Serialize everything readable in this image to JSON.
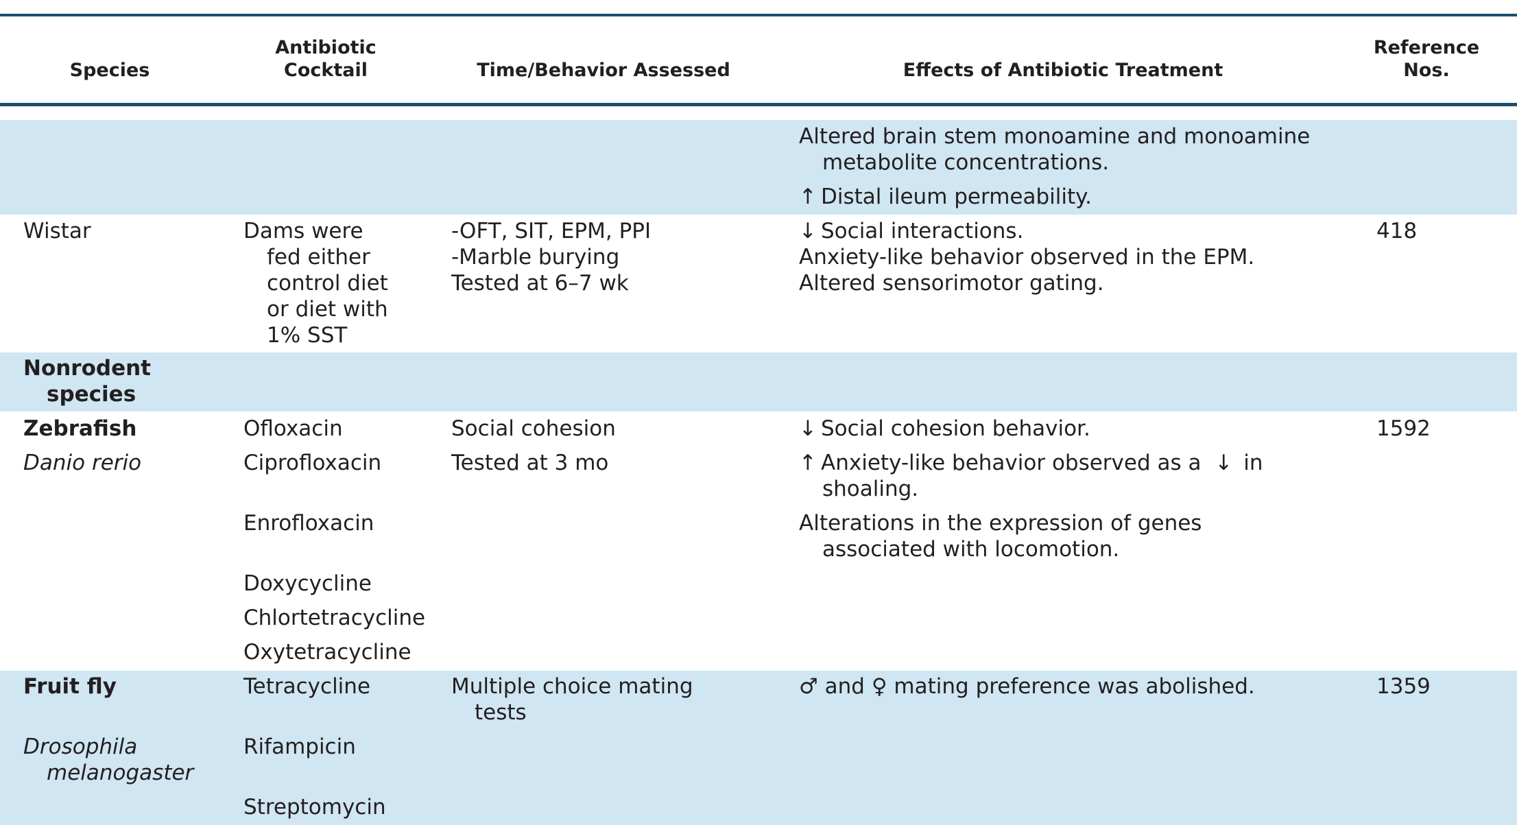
{
  "header": {
    "species": "Species",
    "antibiotic": "Antibiotic\nCocktail",
    "time_behavior": "Time/Behavior Assessed",
    "effects": "Effects of Antibiotic Treatment",
    "reference": "Reference\nNos."
  },
  "row_prev": {
    "effects_line1": "Altered brain stem monoamine and monoamine",
    "effects_line2": "metabolite concentrations.",
    "effects_arrow2": "↑",
    "effects_line3": "Distal ileum permeability."
  },
  "row_wistar": {
    "species": "Wistar",
    "antibiotic_lines": [
      "Dams were",
      "fed either",
      "control diet",
      "or diet with",
      "1% SST"
    ],
    "time_lines": [
      "-OFT, SIT, EPM, PPI",
      "-Marble burying",
      "Tested at 6–7 wk"
    ],
    "effects_arrow1": "↓",
    "effects_line1": "Social interactions.",
    "effects_line2": "Anxiety-like behavior observed in the EPM.",
    "effects_line3": "Altered sensorimotor gating.",
    "reference": "418"
  },
  "section_nonrodent": {
    "line1": "Nonrodent",
    "line2": "species"
  },
  "row_zebrafish": {
    "species": "Zebrafish",
    "species_latin": "Danio rerio",
    "antibiotics": [
      "Ofloxacin",
      "Ciprofloxacin",
      "Enrofloxacin",
      "Doxycycline",
      "Chlortetracycline",
      "Oxytetracycline"
    ],
    "time_lines": [
      "Social cohesion",
      "Tested at 3 mo"
    ],
    "effects_arrow1": "↓",
    "effects_line1": "Social cohesion behavior.",
    "effects_arrow2": "↑",
    "effects_line2a": "Anxiety-like behavior observed as a",
    "effects_arrow2b": "↓",
    "effects_line2b": "in",
    "effects_line2c": "shoaling.",
    "effects_line3a": "Alterations in the expression of genes",
    "effects_line3b": "associated with locomotion.",
    "reference": "1592"
  },
  "row_fruitfly": {
    "species": "Fruit fly",
    "species_latin_line1": "Drosophila",
    "species_latin_line2": "melanogaster",
    "antibiotics": [
      "Tetracycline",
      "Rifampicin",
      "Streptomycin"
    ],
    "time_line1": "Multiple choice mating",
    "time_line2": "tests",
    "effects_male": "♂",
    "effects_and": "and",
    "effects_female": "♀",
    "effects_text": "mating preference was abolished.",
    "reference": "1359"
  },
  "colors": {
    "rule": "#1d4f6b",
    "band": "#d0e6f2",
    "text": "#231f20"
  }
}
